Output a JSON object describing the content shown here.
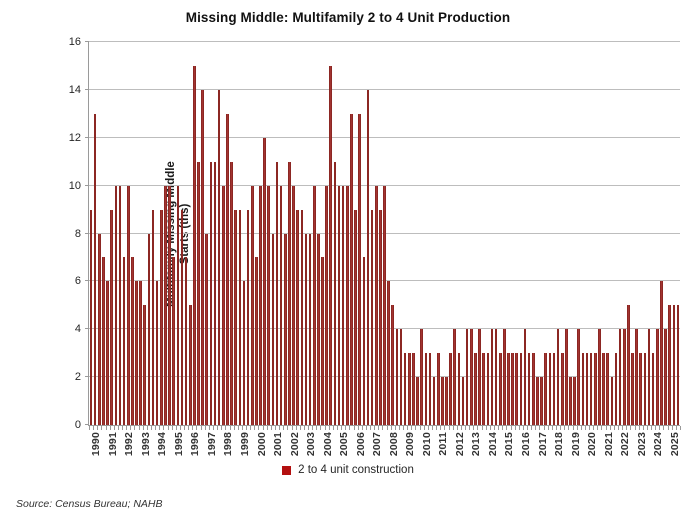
{
  "title": "Missing Middle: Multifamily 2 to 4 Unit Production",
  "source": "Source: Census Bureau; NAHB",
  "legend": {
    "label": "2 to 4 unit construction",
    "marker_color": "#b30f0f"
  },
  "colors": {
    "bar": "#a23431",
    "bar_edge": "#7e1f1a",
    "gridline": "#bdbdbd",
    "axis": "#9a9a9a",
    "text": "#262626"
  },
  "chart_data": {
    "type": "bar",
    "title": "Missing Middle: Multifamily 2 to 4 Unit Production",
    "ylabel_lines": [
      "Multifamily Missing Middle",
      "Starts (ths)"
    ],
    "xlabel": "",
    "frequency": "quarterly",
    "x_start": "1990 Q1",
    "x_end": "2025 Q3",
    "x_tick_labels": [
      "1990",
      "1991",
      "1992",
      "1993",
      "1994",
      "1995",
      "1996",
      "1997",
      "1998",
      "1999",
      "2000",
      "2001",
      "2002",
      "2003",
      "2004",
      "2005",
      "2006",
      "2007",
      "2008",
      "2009",
      "2010",
      "2011",
      "2012",
      "2013",
      "2014",
      "2015",
      "2016",
      "2017",
      "2018",
      "2019",
      "2020",
      "2021",
      "2022",
      "2023",
      "2024",
      "2025"
    ],
    "y_ticks": [
      0,
      2,
      4,
      6,
      8,
      10,
      12,
      14,
      16
    ],
    "ylim": [
      0,
      16
    ],
    "grid": "horizontal",
    "legend_position": "bottom",
    "series": [
      {
        "name": "2 to 4 unit construction",
        "values": [
          9,
          13,
          8,
          7,
          6,
          9,
          10,
          10,
          7,
          10,
          7,
          6,
          6,
          5,
          8,
          9,
          6,
          9,
          10,
          10,
          7,
          10,
          9,
          7,
          5,
          15,
          11,
          14,
          8,
          11,
          11,
          14,
          10,
          13,
          11,
          9,
          9,
          6,
          9,
          10,
          7,
          10,
          12,
          10,
          8,
          11,
          10,
          8,
          11,
          10,
          9,
          9,
          8,
          8,
          10,
          8,
          7,
          10,
          15,
          11,
          10,
          10,
          10,
          13,
          9,
          13,
          7,
          14,
          9,
          10,
          9,
          10,
          6,
          5,
          4,
          4,
          3,
          3,
          3,
          2,
          4,
          3,
          3,
          2,
          3,
          2,
          2,
          3,
          4,
          3,
          2,
          4,
          4,
          3,
          4,
          3,
          3,
          4,
          4,
          3,
          4,
          3,
          3,
          3,
          3,
          4,
          3,
          3,
          2,
          2,
          3,
          3,
          3,
          4,
          3,
          4,
          2,
          2,
          4,
          3,
          3,
          3,
          3,
          4,
          3,
          3,
          2,
          3,
          4,
          4,
          5,
          3,
          4,
          3,
          3,
          4,
          3,
          4,
          6,
          4,
          5,
          5,
          5
        ]
      }
    ]
  }
}
